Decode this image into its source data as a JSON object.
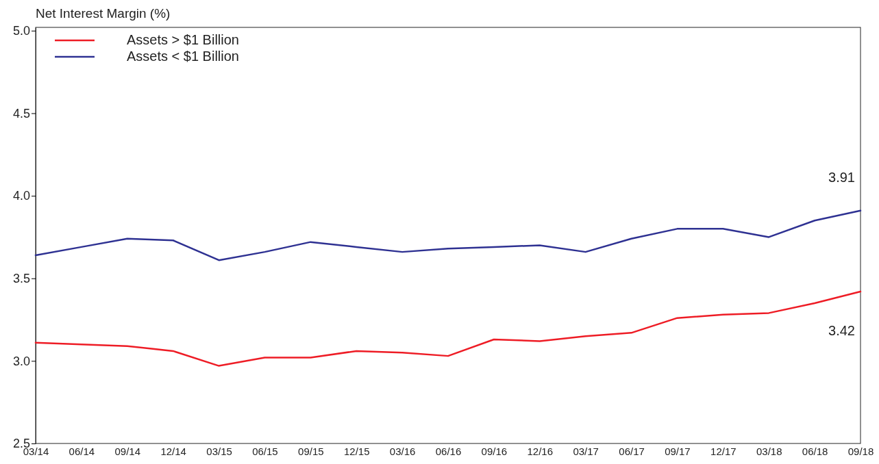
{
  "chart_data": {
    "type": "line",
    "ylabel": "Net Interest Margin (%)",
    "categories": [
      "03/14",
      "06/14",
      "09/14",
      "12/14",
      "03/15",
      "06/15",
      "09/15",
      "12/15",
      "03/16",
      "06/16",
      "09/16",
      "12/16",
      "03/17",
      "06/17",
      "09/17",
      "12/17",
      "03/18",
      "06/18",
      "09/18"
    ],
    "series": [
      {
        "name": "Assets > $1 Billion",
        "color": "#ee1c25",
        "values": [
          3.11,
          3.1,
          3.09,
          3.06,
          2.97,
          3.02,
          3.02,
          3.06,
          3.05,
          3.03,
          3.13,
          3.12,
          3.15,
          3.17,
          3.26,
          3.28,
          3.29,
          3.35,
          3.42
        ]
      },
      {
        "name": "Assets < $1 Billion",
        "color": "#2e3192",
        "values": [
          3.64,
          3.69,
          3.74,
          3.73,
          3.61,
          3.66,
          3.72,
          3.69,
          3.66,
          3.68,
          3.69,
          3.7,
          3.66,
          3.74,
          3.8,
          3.8,
          3.75,
          3.85,
          3.91
        ]
      }
    ],
    "ylim": [
      2.5,
      5.02
    ],
    "yticks": [
      2.5,
      {
        "value": 3,
        "label": "3.0"
      },
      3.5,
      {
        "value": 4,
        "label": "4.0"
      },
      4.5,
      {
        "value": 5,
        "label": "5.0"
      }
    ],
    "annotations": [
      {
        "text": "3.91",
        "x": "09/18",
        "y": 3.91
      },
      {
        "text": "3.42",
        "x": "09/18",
        "y": 3.42
      }
    ],
    "legend": "top left",
    "grid": false
  }
}
